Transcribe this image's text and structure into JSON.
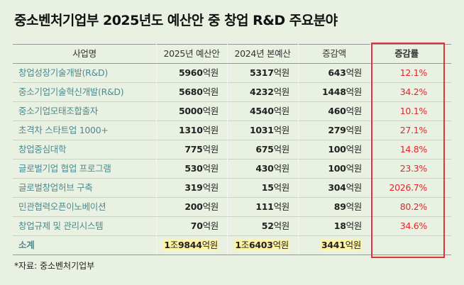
{
  "title": "중소벤처기업부 2025년도 예산안 중 창업 R&D 주요분야",
  "table": {
    "headers": [
      "사업명",
      "2025년 예산안",
      "2024년 본예산",
      "증감액",
      "증감률"
    ],
    "rows": [
      [
        "창업성장기술개발(R&D)",
        "5960억원",
        "5317억원",
        "643억원",
        "12.1%"
      ],
      [
        "중소기업기술혁신개발(R&D)",
        "5680억원",
        "4232억원",
        "1448억원",
        "34.2%"
      ],
      [
        "중소기업모태조합출자",
        "5000억원",
        "4540억원",
        "460억원",
        "10.1%"
      ],
      [
        "초격차 스타트업 1000+",
        "1310억원",
        "1031억원",
        "279억원",
        "27.1%"
      ],
      [
        "창업중심대학",
        "775억원",
        "675억원",
        "100억원",
        "14.8%"
      ],
      [
        "글로벌기업 협업 프로그램",
        "530억원",
        "430억원",
        "100억원",
        "23.3%"
      ],
      [
        "글로벌창업허브 구축",
        "319억원",
        "15억원",
        "304억원",
        "2026.7%"
      ],
      [
        "민관협력오픈이노베이션",
        "200억원",
        "111억원",
        "89억원",
        "80.2%"
      ],
      [
        "창업규제 및 관리시스템",
        "70억원",
        "52억원",
        "18억원",
        "34.6%"
      ]
    ],
    "total": [
      "소계",
      "1조9844억원",
      "1조6403억원",
      "3441억원"
    ]
  },
  "source": "*자료: 중소벤처기업부"
}
